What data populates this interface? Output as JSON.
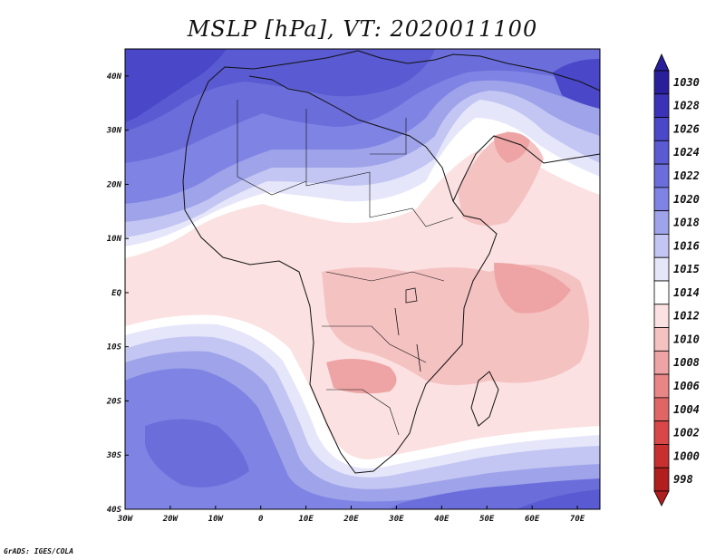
{
  "title": "MSLP [hPa], VT: 2020011100",
  "credit": "GrADS: IGES/COLA",
  "map": {
    "lon_range": [
      -30,
      75
    ],
    "lat_range": [
      -40,
      45
    ],
    "lon_ticks": [
      {
        "lon": -30,
        "label": "30W"
      },
      {
        "lon": -20,
        "label": "20W"
      },
      {
        "lon": -10,
        "label": "10W"
      },
      {
        "lon": 0,
        "label": "0"
      },
      {
        "lon": 10,
        "label": "10E"
      },
      {
        "lon": 20,
        "label": "20E"
      },
      {
        "lon": 30,
        "label": "30E"
      },
      {
        "lon": 40,
        "label": "40E"
      },
      {
        "lon": 50,
        "label": "50E"
      },
      {
        "lon": 60,
        "label": "60E"
      },
      {
        "lon": 70,
        "label": "70E"
      }
    ],
    "lat_ticks": [
      {
        "lat": 40,
        "label": "40N"
      },
      {
        "lat": 30,
        "label": "30N"
      },
      {
        "lat": 20,
        "label": "20N"
      },
      {
        "lat": 10,
        "label": "10N"
      },
      {
        "lat": 0,
        "label": "EQ"
      },
      {
        "lat": -10,
        "label": "10S"
      },
      {
        "lat": -20,
        "label": "20S"
      },
      {
        "lat": -30,
        "label": "30S"
      },
      {
        "lat": -40,
        "label": "40S"
      }
    ]
  },
  "colorbar": {
    "levels": [
      "1030",
      "1028",
      "1026",
      "1024",
      "1022",
      "1020",
      "1018",
      "1016",
      "1015",
      "1014",
      "1012",
      "1010",
      "1008",
      "1006",
      "1004",
      "1002",
      "1000",
      "998"
    ],
    "colors": [
      "#2a1f9a",
      "#3a33b8",
      "#4a47c8",
      "#5a5ad2",
      "#6b6ddb",
      "#7f83e3",
      "#9ea3ea",
      "#c3c6f2",
      "#e6e6fa",
      "#ffffff",
      "#fbe1e1",
      "#f5c2c2",
      "#eea4a4",
      "#e88686",
      "#e06666",
      "#d84848",
      "#c83030",
      "#b01e1e"
    ]
  },
  "field": {
    "colors": {
      "c1029": "#2a1f9a",
      "c1026": "#4a47c8",
      "c1024": "#5a5ad2",
      "c1022": "#6b6ddb",
      "c1020": "#7f83e3",
      "c1018": "#9ea3ea",
      "c1016": "#c3c6f2",
      "c1015": "#e6e6fa",
      "c1014": "#ffffff",
      "c1012": "#fbe1e1",
      "c1010": "#f5c2c2",
      "c1008": "#eea4a4"
    }
  }
}
